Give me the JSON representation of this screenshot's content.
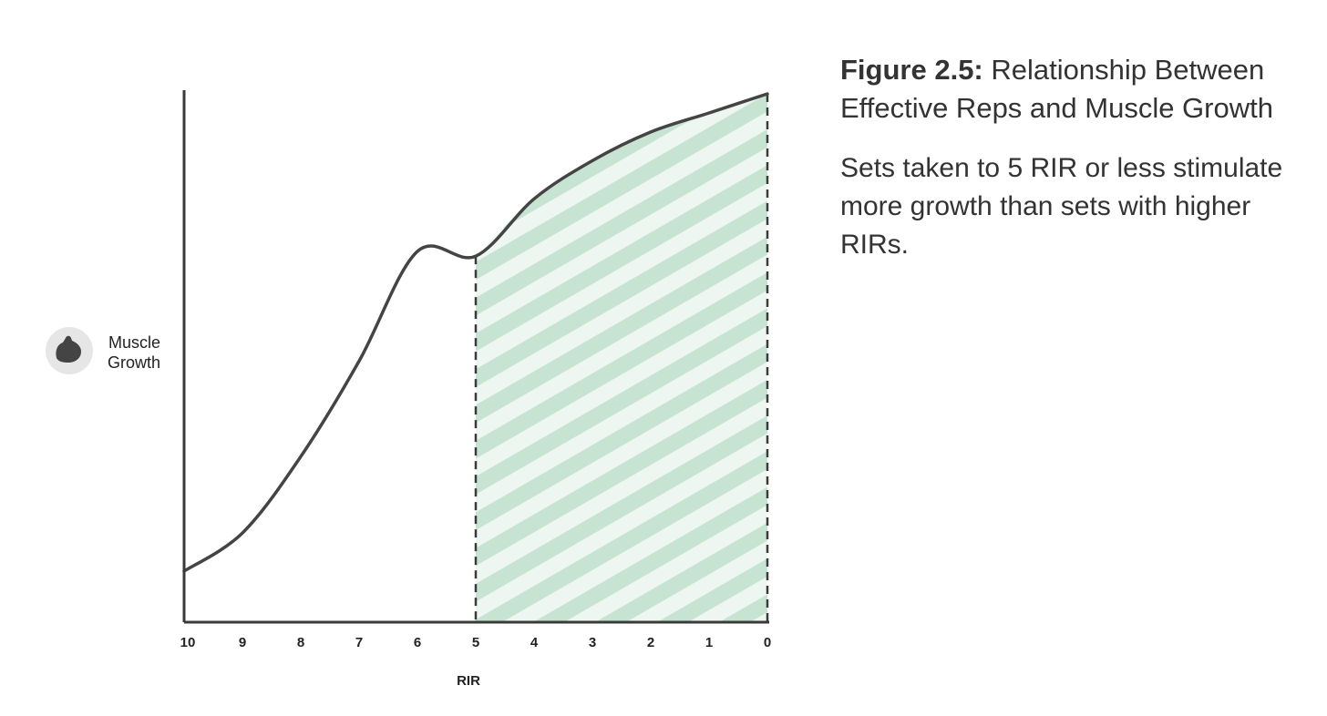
{
  "figure": {
    "label": "Figure 2.5:",
    "title": "Relationship Between Effective Reps and Muscle Growth",
    "description": "Sets taken to 5 RIR or less stimulate more growth than sets with higher RIRs."
  },
  "y_icon": "flexed-bicep-icon",
  "colors": {
    "curve": "#444444",
    "axis": "#3a3a3a",
    "stripe_light": "#eef6f1",
    "stripe_dark": "#c7e3d2",
    "icon_bg": "#e6e6e6",
    "icon_fg": "#444444"
  },
  "chart_data": {
    "type": "area",
    "xlabel": "RIR",
    "ylabel": "Muscle Growth",
    "x_ticks": [
      "10",
      "9",
      "8",
      "7",
      "6",
      "5",
      "4",
      "3",
      "2",
      "1",
      "0"
    ],
    "x": [
      10,
      9,
      8,
      7,
      6,
      5,
      4,
      3,
      2,
      1,
      0
    ],
    "y": [
      0.0,
      0.08,
      0.24,
      0.44,
      0.67,
      0.66,
      0.78,
      0.86,
      0.92,
      0.96,
      1.0
    ],
    "highlight_range": [
      5,
      0
    ],
    "highlight_pattern": "diagonal-stripes",
    "xlim": [
      10,
      0
    ],
    "ylim": [
      -0.1,
      1.0
    ],
    "grid": false
  }
}
